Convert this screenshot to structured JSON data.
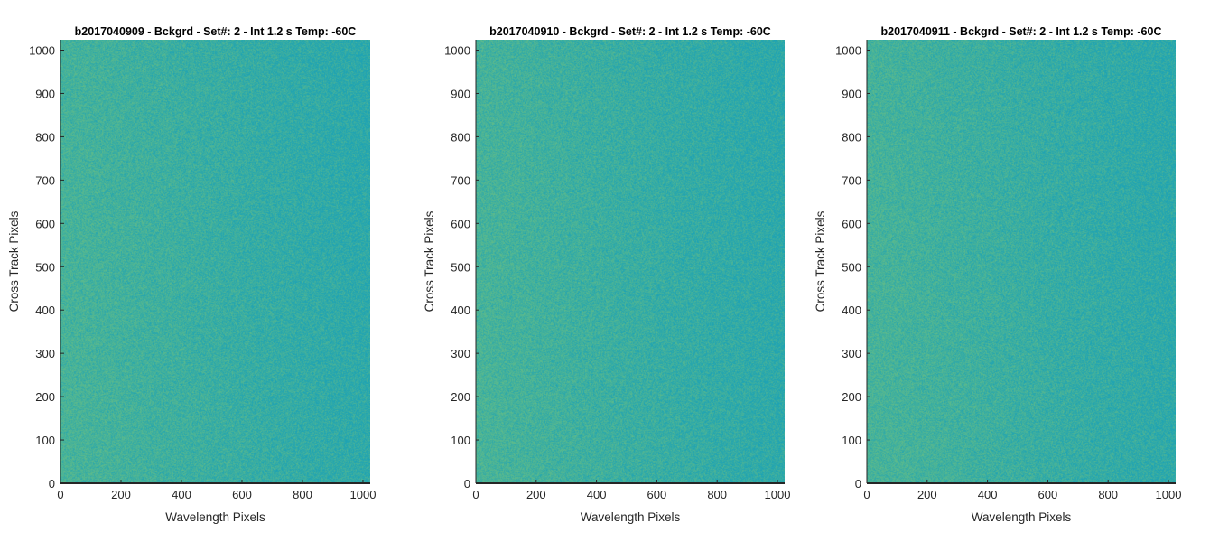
{
  "chart_data": [
    {
      "type": "heatmap",
      "title": "b2017040909 - Bckgrd - Set#: 2 - Int 1.2 s Temp: -60C",
      "xlabel": "Wavelength Pixels",
      "ylabel": "Cross Track Pixels",
      "xlim": [
        0,
        1024
      ],
      "ylim": [
        0,
        1024
      ],
      "xticks": [
        0,
        200,
        400,
        600,
        800,
        1000
      ],
      "yticks": [
        0,
        100,
        200,
        300,
        400,
        500,
        600,
        700,
        800,
        900,
        1000
      ],
      "colormap": "parula",
      "colors": {
        "low": "#1ea3b4",
        "high": "#5fbb8a"
      },
      "pattern": "noise, slightly warmer toward low wavelength pixels",
      "grid": false
    },
    {
      "type": "heatmap",
      "title": "b2017040910 - Bckgrd - Set#: 2 - Int 1.2 s Temp: -60C",
      "xlabel": "Wavelength Pixels",
      "ylabel": "Cross Track Pixels",
      "xlim": [
        0,
        1024
      ],
      "ylim": [
        0,
        1024
      ],
      "xticks": [
        0,
        200,
        400,
        600,
        800,
        1000
      ],
      "yticks": [
        0,
        100,
        200,
        300,
        400,
        500,
        600,
        700,
        800,
        900,
        1000
      ],
      "colormap": "parula",
      "colors": {
        "low": "#1ea3b4",
        "high": "#5fbb8a"
      },
      "pattern": "noise, slightly warmer toward low wavelength pixels",
      "grid": false
    },
    {
      "type": "heatmap",
      "title": "b2017040911 - Bckgrd - Set#: 2 - Int 1.2 s Temp: -60C",
      "xlabel": "Wavelength Pixels",
      "ylabel": "Cross Track Pixels",
      "xlim": [
        0,
        1024
      ],
      "ylim": [
        0,
        1024
      ],
      "xticks": [
        0,
        200,
        400,
        600,
        800,
        1000
      ],
      "yticks": [
        0,
        100,
        200,
        300,
        400,
        500,
        600,
        700,
        800,
        900,
        1000
      ],
      "colormap": "parula",
      "colors": {
        "low": "#1ea3b4",
        "high": "#5fbb8a"
      },
      "pattern": "noise, slightly warmer toward low wavelength pixels",
      "grid": false
    }
  ]
}
